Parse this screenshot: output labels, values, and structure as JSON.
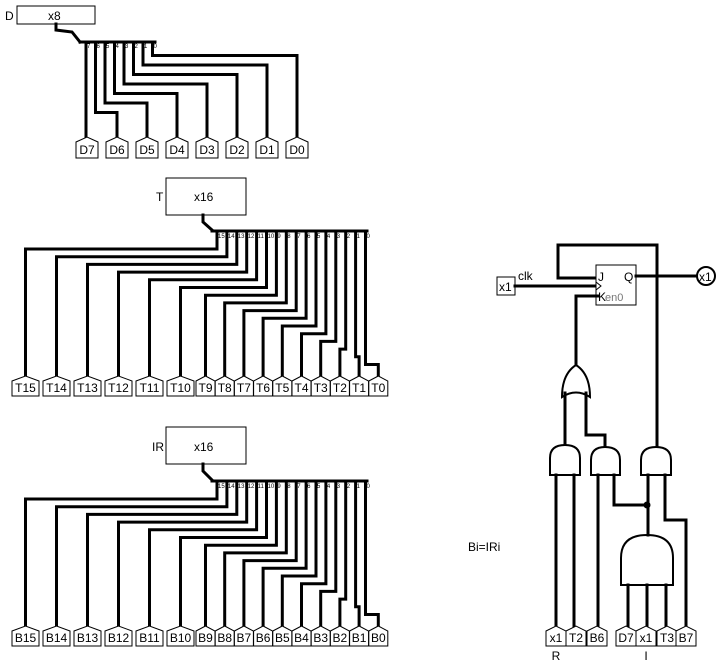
{
  "d_input": {
    "label": "D",
    "width_text": "x8"
  },
  "d_outputs": [
    "D7",
    "D6",
    "D5",
    "D4",
    "D3",
    "D2",
    "D1",
    "D0"
  ],
  "d_bit_indices": [
    "7",
    "6",
    "5",
    "4",
    "3",
    "2",
    "1",
    "0"
  ],
  "t_input": {
    "label": "T",
    "width_text": "x16"
  },
  "t_outputs": [
    "T15",
    "T14",
    "T13",
    "T12",
    "T11",
    "T10",
    "T9",
    "T8",
    "T7",
    "T6",
    "T5",
    "T4",
    "T3",
    "T2",
    "T1",
    "T0"
  ],
  "ir_input": {
    "label": "IR",
    "width_text": "x16"
  },
  "b_outputs": [
    "B15",
    "B14",
    "B13",
    "B12",
    "B11",
    "B10",
    "B9",
    "B8",
    "B7",
    "B6",
    "B5",
    "B4",
    "B3",
    "B2",
    "B1",
    "B0"
  ],
  "bit_indices_16": [
    "15",
    "14",
    "13",
    "12",
    "11",
    "10",
    "9",
    "8",
    "7",
    "6",
    "5",
    "4",
    "3",
    "2",
    "1",
    "0"
  ],
  "note": "Bi=IRi",
  "flipflop": {
    "clock_label": "clk",
    "clock_input": "x1",
    "j_pin": "J",
    "k_pin": "K",
    "q_pin": "Q",
    "en_pin": "en0",
    "output": "x1"
  },
  "bottom_inputs": [
    {
      "text": "x1",
      "caption": "R"
    },
    {
      "text": "T2",
      "caption": ""
    },
    {
      "text": "B6",
      "caption": ""
    },
    {
      "text": "D7",
      "caption": ""
    },
    {
      "text": "x1",
      "caption": "I"
    },
    {
      "text": "T3",
      "caption": ""
    },
    {
      "text": "B7",
      "caption": ""
    }
  ]
}
